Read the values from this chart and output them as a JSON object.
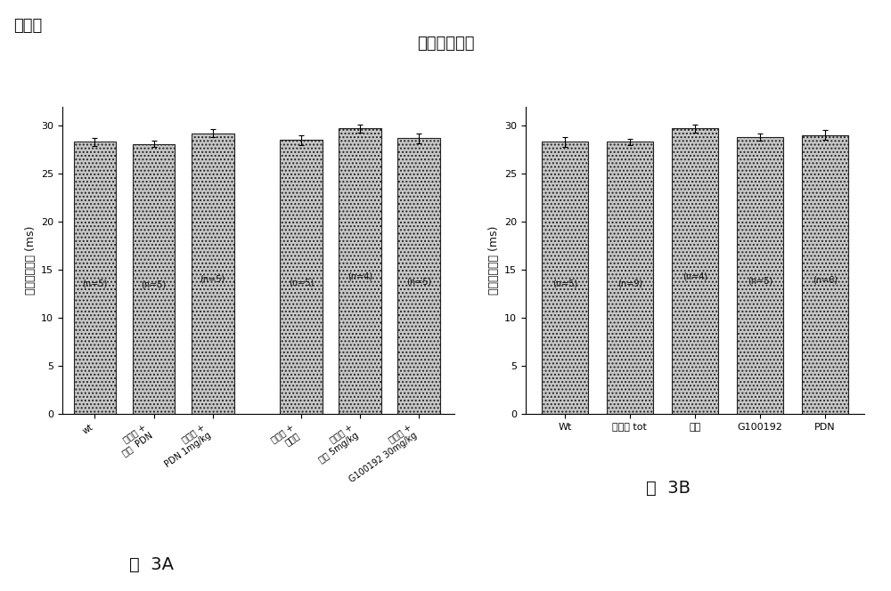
{
  "title": "到峰値的时间",
  "super_title": "横隔膜",
  "fig3A_label": "图  3A",
  "fig3B_label": "图  3B",
  "chart3A_group1": [
    {
      "label": "wt",
      "value": 28.3,
      "error": 0.4,
      "n_label": "(n=5)"
    },
    {
      "label": "运动的 +\n载剂  PDN",
      "value": 28.1,
      "error": 0.3,
      "n_label": "(n=5)"
    },
    {
      "label": "运动的 +\nPDN 1mg/kg",
      "value": 29.2,
      "error": 0.4,
      "n_label": "(n=5)"
    }
  ],
  "chart3A_group2": [
    {
      "label": "运动的 +\n玉米油",
      "value": 28.5,
      "error": 0.5,
      "n_label": "(n=5)"
    },
    {
      "label": "运动的 +\n诺龙 5mg/kg",
      "value": 29.7,
      "error": 0.4,
      "n_label": "(n=4)"
    },
    {
      "label": "运动的 +\nG100192 30mg/kg",
      "value": 28.7,
      "error": 0.5,
      "n_label": "(n=5)"
    }
  ],
  "chart3B_bars": [
    {
      "label": "Wt",
      "value": 28.3,
      "error": 0.5,
      "n_label": "(n=5)"
    },
    {
      "label": "运动的 tot",
      "value": 28.3,
      "error": 0.3,
      "n_label": "(n=9)"
    },
    {
      "label": "诺龙",
      "value": 29.7,
      "error": 0.4,
      "n_label": "(n=4)"
    },
    {
      "label": "G100192",
      "value": 28.8,
      "error": 0.4,
      "n_label": "(n=5)"
    },
    {
      "label": "PDN",
      "value": 29.0,
      "error": 0.5,
      "n_label": "(n=6)"
    }
  ],
  "ylabel": "到峰値的时间 (ms)",
  "ylim": [
    0,
    32
  ],
  "yticks": [
    0,
    5,
    10,
    15,
    20,
    25,
    30
  ],
  "bar_facecolor": "#c8c8c8",
  "bar_edgecolor": "#222222",
  "font_color": "#111111",
  "bg_color": "#ffffff",
  "n_label_fontsize": 7,
  "title_fontsize": 13,
  "ylabel_fontsize": 9,
  "tick_fontsize": 8,
  "xtick_fontsize": 7,
  "fig_label_fontsize": 14
}
